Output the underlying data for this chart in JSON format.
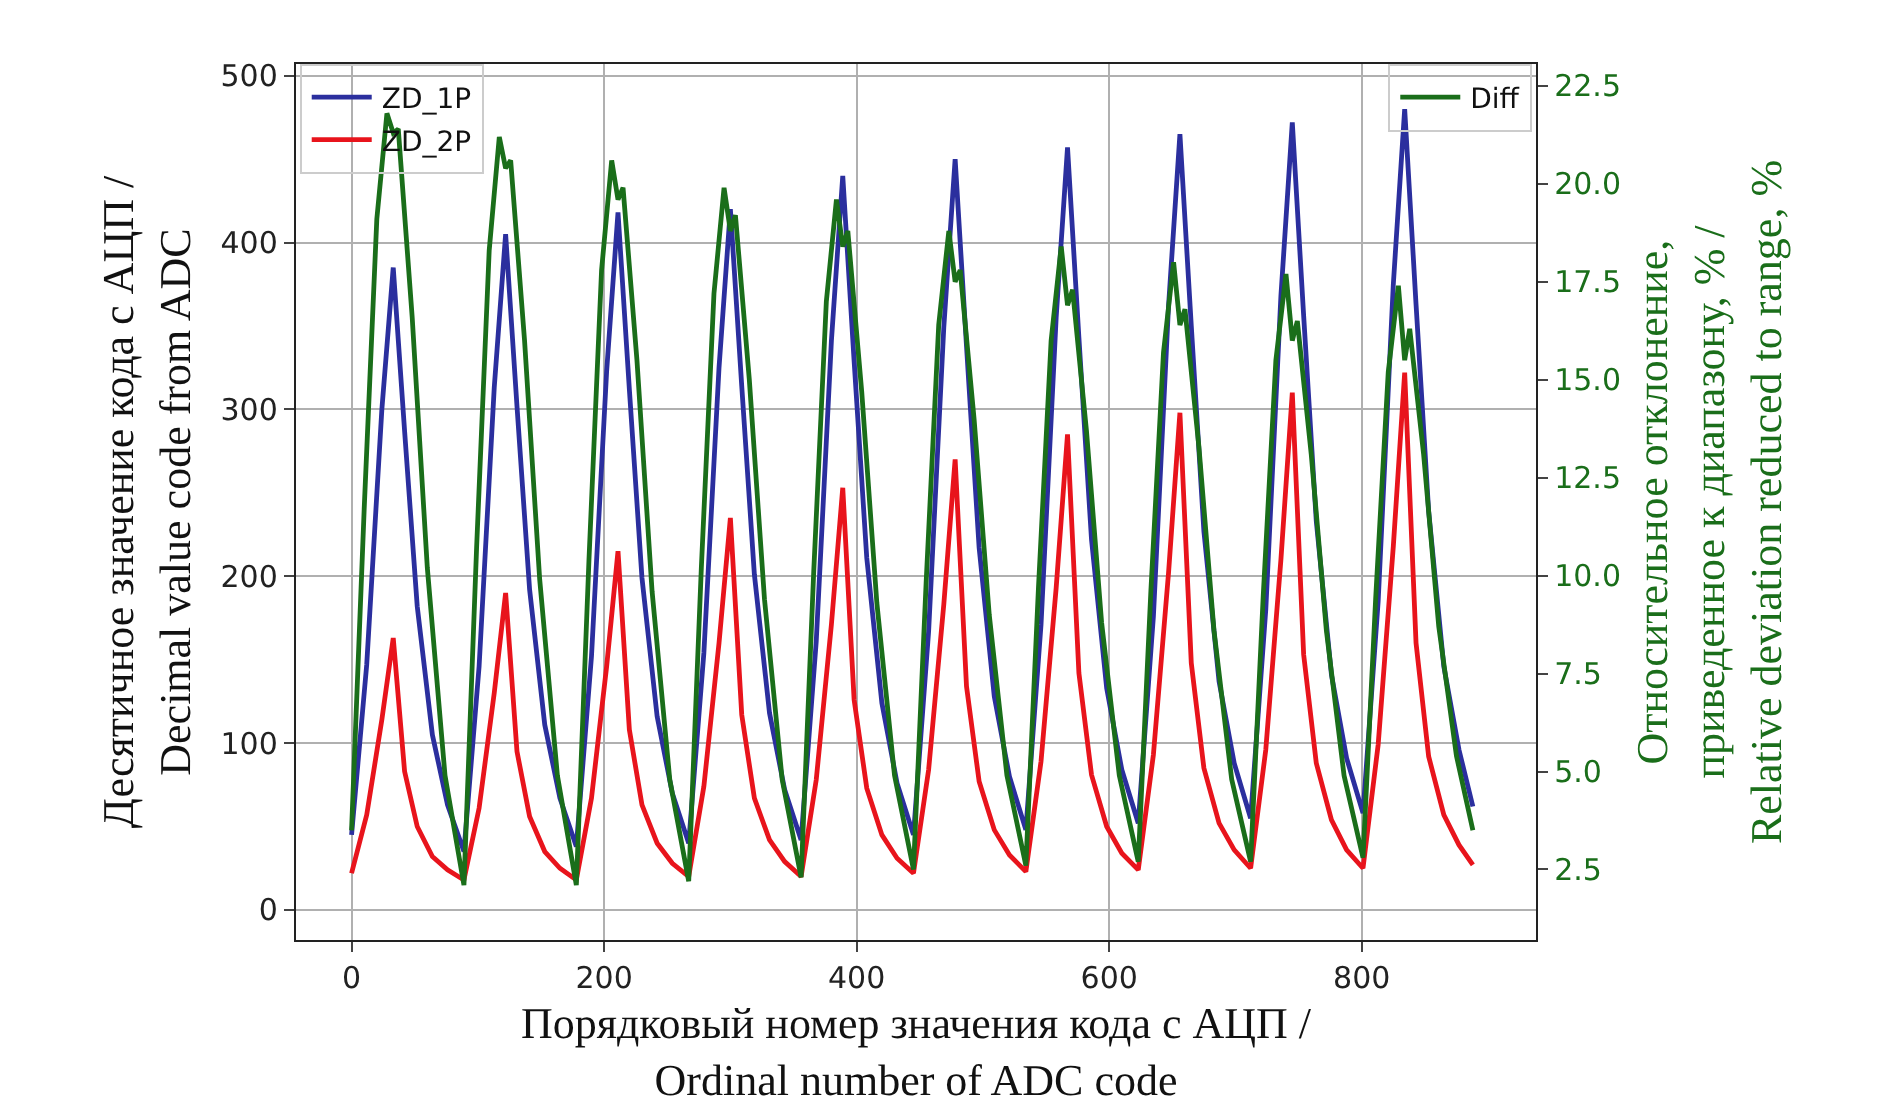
{
  "chart_data": {
    "type": "line",
    "xlabel": "Порядковый номер значения кода с АЦП /\nOrdinal number of ADC code",
    "ylabel": "Десятичное значение кода с АЦП /\nDecimal value code from ADC",
    "y2label": "Относительное отклонение,\nприведенное к диапазону, % /\nRelative deviation reduced to range, %",
    "xlim": [
      -44,
      938
    ],
    "xticks": [
      0,
      200,
      400,
      600,
      800
    ],
    "ylim": [
      -18,
      507
    ],
    "yticks": [
      0,
      100,
      200,
      300,
      400,
      500
    ],
    "y2lim": [
      0.7,
      23.06
    ],
    "y2ticks": [
      2.5,
      {
        "value": 5,
        "label": "5.0"
      },
      7.5,
      {
        "value": 10,
        "label": "10.0"
      },
      12.5,
      {
        "value": 15,
        "label": "15.0"
      },
      17.5,
      {
        "value": 20,
        "label": "20.0"
      },
      22.5
    ],
    "grid": true,
    "legend": "top left",
    "line_style": "solid",
    "marker": "none",
    "series": [
      {
        "name": "ZD_1P",
        "color": "#2b2f9e",
        "x": [
          0,
          12,
          24,
          33,
          42,
          52,
          64,
          76,
          89,
          101,
          113,
          122,
          131,
          141,
          153,
          165,
          178,
          190,
          202,
          211,
          220,
          230,
          242,
          254,
          267,
          279,
          291,
          300,
          309,
          319,
          331,
          343,
          356,
          368,
          380,
          389,
          398,
          408,
          420,
          432,
          445,
          457,
          469,
          478,
          487,
          497,
          509,
          521,
          534,
          546,
          558,
          567,
          576,
          586,
          598,
          610,
          623,
          635,
          647,
          656,
          665,
          675,
          687,
          699,
          712,
          724,
          736,
          745,
          754,
          764,
          776,
          788,
          801,
          813,
          825,
          834,
          843,
          853,
          865,
          877,
          888
        ],
        "values": [
          45,
          147,
          300,
          385,
          287,
          182,
          105,
          63,
          35,
          146,
          313,
          405,
          302,
          192,
          111,
          67,
          38,
          152,
          323,
          418,
          312,
          199,
          116,
          70,
          40,
          154,
          325,
          420,
          314,
          201,
          118,
          72,
          42,
          161,
          341,
          440,
          329,
          211,
          124,
          76,
          45,
          167,
          349,
          450,
          338,
          217,
          128,
          80,
          48,
          171,
          355,
          457,
          343,
          222,
          133,
          84,
          52,
          176,
          362,
          465,
          350,
          227,
          137,
          88,
          55,
          180,
          368,
          472,
          356,
          233,
          141,
          91,
          58,
          185,
          375,
          480,
          363,
          239,
          146,
          96,
          62
        ]
      },
      {
        "name": "ZD_2P",
        "color": "#e8141c",
        "x": [
          0,
          12,
          24,
          33,
          42,
          52,
          64,
          76,
          89,
          101,
          113,
          122,
          131,
          141,
          153,
          165,
          178,
          190,
          202,
          211,
          220,
          230,
          242,
          254,
          267,
          279,
          291,
          300,
          309,
          319,
          331,
          343,
          356,
          368,
          380,
          389,
          398,
          408,
          420,
          432,
          445,
          457,
          469,
          478,
          487,
          497,
          509,
          521,
          534,
          546,
          558,
          567,
          576,
          586,
          598,
          610,
          623,
          635,
          647,
          656,
          665,
          675,
          687,
          699,
          712,
          724,
          736,
          745,
          754,
          764,
          776,
          788,
          801,
          813,
          825,
          834,
          843,
          853,
          865,
          877,
          888
        ],
        "values": [
          22,
          57,
          114,
          163,
          83,
          50,
          32,
          24,
          18,
          61,
          130,
          190,
          95,
          56,
          35,
          25,
          18,
          67,
          146,
          215,
          108,
          63,
          40,
          28,
          20,
          74,
          160,
          235,
          117,
          67,
          42,
          29,
          20,
          78,
          171,
          253,
          126,
          73,
          45,
          31,
          22,
          84,
          183,
          270,
          134,
          77,
          48,
          33,
          23,
          89,
          193,
          285,
          142,
          81,
          50,
          34,
          24,
          93,
          202,
          298,
          148,
          85,
          52,
          36,
          25,
          96,
          210,
          310,
          153,
          88,
          54,
          36,
          25,
          99,
          218,
          322,
          160,
          92,
          57,
          39,
          27
        ]
      },
      {
        "name": "Diff",
        "color": "#1a6e1a",
        "axis": "y2",
        "x": [
          0,
          10,
          20,
          28,
          33,
          37,
          48,
          60,
          74,
          89,
          99,
          109,
          117,
          122,
          126,
          137,
          149,
          163,
          178,
          188,
          198,
          206,
          211,
          215,
          226,
          238,
          252,
          267,
          277,
          287,
          295,
          300,
          304,
          315,
          327,
          341,
          356,
          366,
          376,
          384,
          389,
          393,
          404,
          416,
          430,
          445,
          455,
          465,
          473,
          478,
          482,
          493,
          505,
          519,
          534,
          544,
          554,
          562,
          567,
          571,
          582,
          594,
          608,
          623,
          633,
          643,
          651,
          656,
          660,
          671,
          683,
          697,
          712,
          722,
          732,
          740,
          745,
          749,
          760,
          772,
          786,
          801,
          811,
          821,
          829,
          834,
          838,
          849,
          861,
          875,
          888
        ],
        "values": [
          3.5,
          11.7,
          19.1,
          21.8,
          21.3,
          21.4,
          16.6,
          10.2,
          4.9,
          2.1,
          10.7,
          18.3,
          21.2,
          20.4,
          20.6,
          16.0,
          9.9,
          4.9,
          2.1,
          10.4,
          17.8,
          20.6,
          19.6,
          19.9,
          15.5,
          9.6,
          4.8,
          2.2,
          10.2,
          17.2,
          19.9,
          18.8,
          19.2,
          15.0,
          9.4,
          4.8,
          2.3,
          10.1,
          17.0,
          19.6,
          18.4,
          18.8,
          14.7,
          9.3,
          4.9,
          2.5,
          9.8,
          16.4,
          18.8,
          17.5,
          17.8,
          14.0,
          9.0,
          4.9,
          2.6,
          9.7,
          16.0,
          18.4,
          16.9,
          17.3,
          13.7,
          8.8,
          4.9,
          2.7,
          9.6,
          15.7,
          18.0,
          16.4,
          16.8,
          13.3,
          8.6,
          4.8,
          2.7,
          9.5,
          15.5,
          17.7,
          16.0,
          16.5,
          13.1,
          8.6,
          4.9,
          2.8,
          9.4,
          15.2,
          17.4,
          15.5,
          16.3,
          13.1,
          8.7,
          5.4,
          3.5
        ]
      }
    ]
  }
}
